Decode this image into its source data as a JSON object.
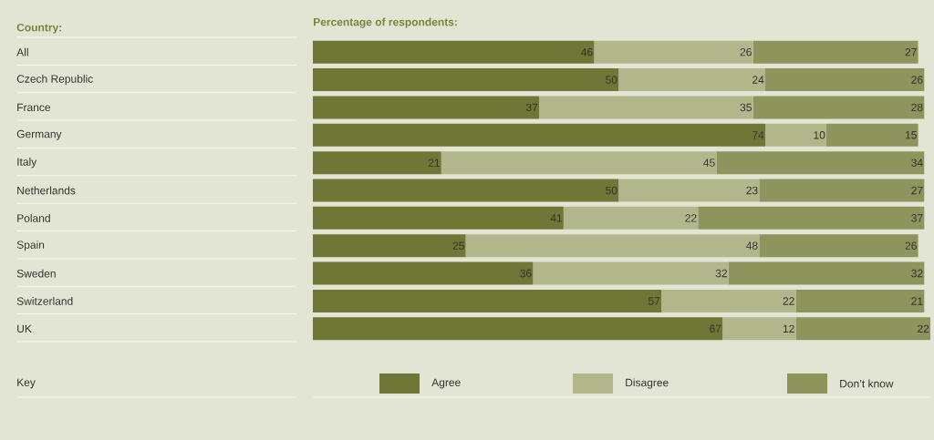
{
  "chart_data": {
    "type": "bar",
    "orientation": "horizontal",
    "stacked": true,
    "title": "Percentage of respondents:",
    "annotations": [
      "Country:"
    ],
    "legend_title": "Key",
    "legend": "bottom",
    "data_labels": true,
    "categories": [
      "All",
      "Czech Republic",
      "France",
      "Germany",
      "Italy",
      "Netherlands",
      "Poland",
      "Spain",
      "Sweden",
      "Switzerland",
      "UK"
    ],
    "series": [
      {
        "name": "Agree",
        "color": "#707635",
        "values": [
          46,
          50,
          37,
          74,
          21,
          50,
          41,
          25,
          36,
          57,
          67
        ]
      },
      {
        "name": "Disagree",
        "color": "#b2b78b",
        "values": [
          26,
          24,
          35,
          10,
          45,
          23,
          22,
          48,
          32,
          22,
          12
        ]
      },
      {
        "name": "Don’t know",
        "color": "#8d945c",
        "values": [
          27,
          26,
          28,
          15,
          34,
          27,
          37,
          26,
          32,
          21,
          22
        ]
      }
    ]
  }
}
